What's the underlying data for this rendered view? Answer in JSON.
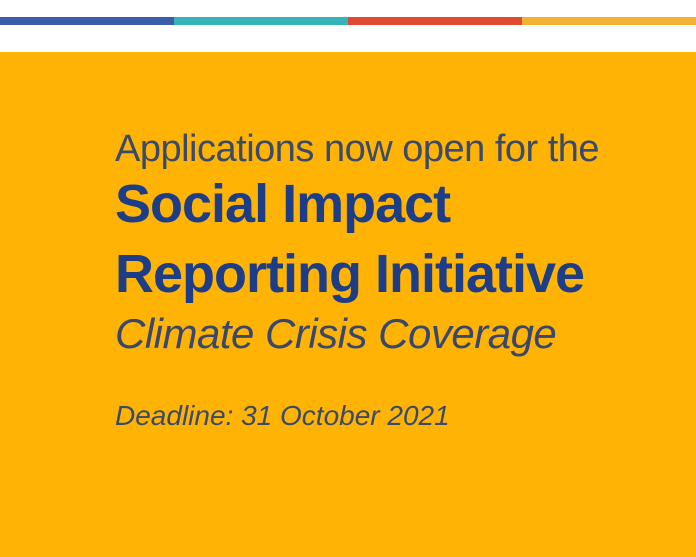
{
  "banner": {
    "top_bar": {
      "segments": [
        {
          "name": "blue-segment",
          "color": "#3d5ca9"
        },
        {
          "name": "teal-segment",
          "color": "#35b3b9"
        },
        {
          "name": "red-segment",
          "color": "#de4a32"
        },
        {
          "name": "amber-segment",
          "color": "#f2b233"
        }
      ]
    },
    "content": {
      "kicker": "Applications now open for the",
      "title_line1": "Social Impact",
      "title_line2": "Reporting Initiative",
      "subtitle": "Climate Crisis Coverage",
      "deadline": "Deadline: 31 October 2021"
    },
    "colors": {
      "background": "#ffb405",
      "strip_background": "#ffffff",
      "title_navy": "#1e3d87",
      "body_slate": "#3a4a68"
    }
  }
}
